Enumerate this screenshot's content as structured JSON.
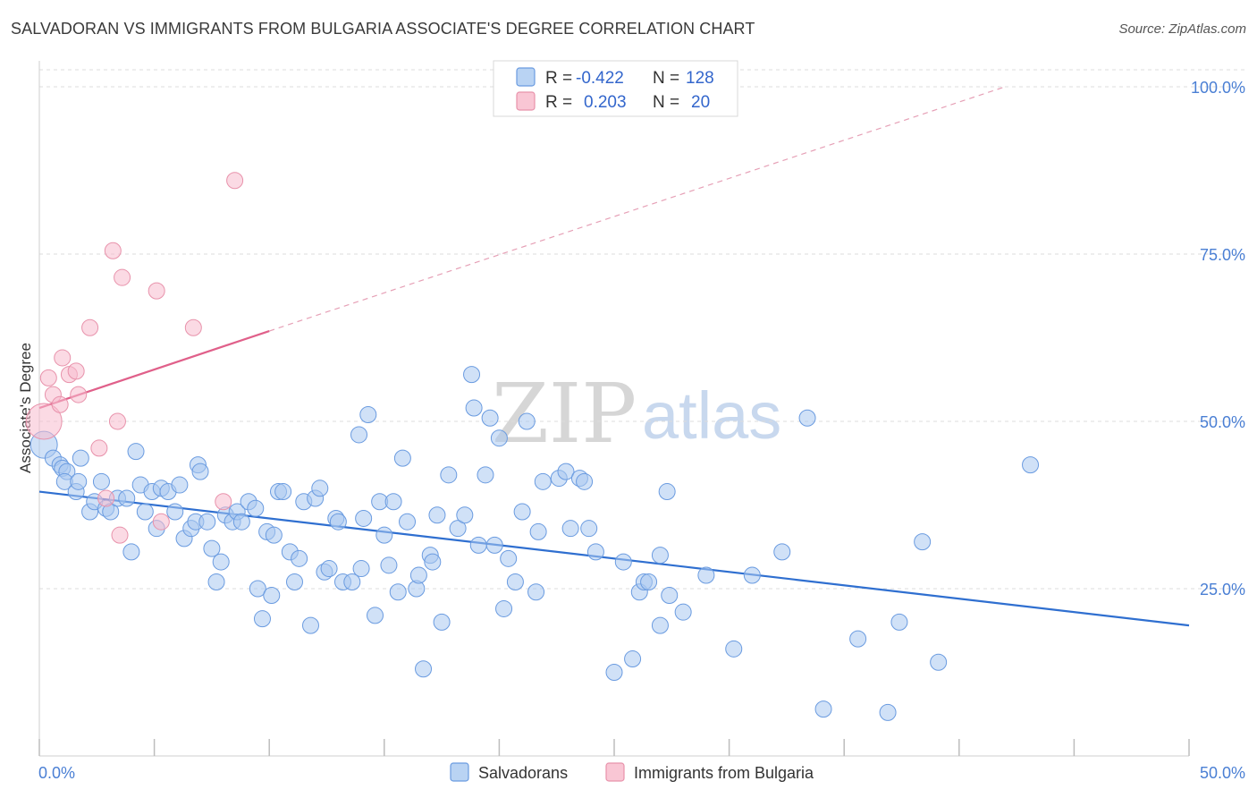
{
  "header": {
    "title": "SALVADORAN VS IMMIGRANTS FROM BULGARIA ASSOCIATE'S DEGREE CORRELATION CHART",
    "source": "Source: ZipAtlas.com"
  },
  "watermark": {
    "zip": "ZIP",
    "atlas": "atlas"
  },
  "legend": {
    "r_label": "R =",
    "n_label": "N =",
    "rows": [
      {
        "r": "-0.422",
        "n": "128",
        "swatch_fill": "#b9d3f3",
        "swatch_stroke": "#6a9be0"
      },
      {
        "r": "0.203",
        "n": "20",
        "swatch_fill": "#f9c6d4",
        "swatch_stroke": "#e892ab"
      }
    ]
  },
  "bottom_legend": [
    {
      "label": "Salvadorans",
      "swatch_fill": "#b9d3f3",
      "swatch_stroke": "#6a9be0"
    },
    {
      "label": "Immigrants from Bulgaria",
      "swatch_fill": "#f9c6d4",
      "swatch_stroke": "#e892ab"
    }
  ],
  "chart_data": {
    "type": "scatter",
    "title": "SALVADORAN VS IMMIGRANTS FROM BULGARIA ASSOCIATE'S DEGREE CORRELATION CHART",
    "xlabel": "",
    "ylabel": "Associate's Degree",
    "xlim": [
      0,
      50
    ],
    "ylim": [
      0,
      100
    ],
    "x_tick_labels": [
      {
        "value": 0,
        "label": "0.0%"
      },
      {
        "value": 50,
        "label": "50.0%"
      }
    ],
    "y_tick_labels": [
      {
        "value": 100,
        "label": "100.0%"
      },
      {
        "value": 75,
        "label": "75.0%"
      },
      {
        "value": 50,
        "label": "50.0%"
      },
      {
        "value": 25,
        "label": "25.0%"
      }
    ],
    "colors": {
      "salvadorans_fill": "#a9c8f0",
      "salvadorans_stroke": "#6a9be0",
      "bulgaria_fill": "#f7bccd",
      "bulgaria_stroke": "#e892ab",
      "blue_line": "#2f6fd0",
      "pink_line": "#e0608a",
      "grid": "#dcdcdc"
    },
    "series": [
      {
        "name": "Salvadorans",
        "r": -0.422,
        "n": 128,
        "trend": {
          "x0": 0,
          "y0": 39.5,
          "x1": 50,
          "y1": 19.5
        },
        "points": [
          [
            0.2,
            46.5
          ],
          [
            0.6,
            44.5
          ],
          [
            0.9,
            43.5
          ],
          [
            1.0,
            43
          ],
          [
            1.2,
            42.5
          ],
          [
            1.1,
            41
          ],
          [
            1.6,
            39.5
          ],
          [
            1.7,
            41
          ],
          [
            1.8,
            44.5
          ],
          [
            2.2,
            36.5
          ],
          [
            2.4,
            38
          ],
          [
            2.7,
            41
          ],
          [
            2.9,
            37
          ],
          [
            3.1,
            36.5
          ],
          [
            3.4,
            38.5
          ],
          [
            3.8,
            38.5
          ],
          [
            4.0,
            30.5
          ],
          [
            4.2,
            45.5
          ],
          [
            4.4,
            40.5
          ],
          [
            4.6,
            36.5
          ],
          [
            4.9,
            39.5
          ],
          [
            5.1,
            34
          ],
          [
            5.3,
            40
          ],
          [
            5.6,
            39.5
          ],
          [
            5.9,
            36.5
          ],
          [
            6.1,
            40.5
          ],
          [
            6.3,
            32.5
          ],
          [
            6.6,
            34
          ],
          [
            6.8,
            35
          ],
          [
            6.9,
            43.5
          ],
          [
            7.0,
            42.5
          ],
          [
            7.3,
            35
          ],
          [
            7.5,
            31
          ],
          [
            7.7,
            26
          ],
          [
            7.9,
            29
          ],
          [
            8.1,
            36
          ],
          [
            8.4,
            35
          ],
          [
            8.6,
            36.5
          ],
          [
            8.8,
            35
          ],
          [
            9.1,
            38
          ],
          [
            9.4,
            37
          ],
          [
            9.5,
            25
          ],
          [
            9.7,
            20.5
          ],
          [
            9.9,
            33.5
          ],
          [
            10.1,
            24
          ],
          [
            10.2,
            33
          ],
          [
            10.4,
            39.5
          ],
          [
            10.6,
            39.5
          ],
          [
            10.9,
            30.5
          ],
          [
            11.1,
            26
          ],
          [
            11.3,
            29.5
          ],
          [
            11.5,
            38
          ],
          [
            11.8,
            19.5
          ],
          [
            12.0,
            38.5
          ],
          [
            12.2,
            40
          ],
          [
            12.4,
            27.5
          ],
          [
            12.6,
            28
          ],
          [
            12.9,
            35.5
          ],
          [
            13.0,
            35
          ],
          [
            13.2,
            26
          ],
          [
            13.6,
            26
          ],
          [
            13.9,
            48
          ],
          [
            14.0,
            28
          ],
          [
            14.1,
            35.5
          ],
          [
            14.3,
            51
          ],
          [
            14.6,
            21
          ],
          [
            14.8,
            38
          ],
          [
            15.0,
            33
          ],
          [
            15.2,
            28.5
          ],
          [
            15.4,
            38
          ],
          [
            15.6,
            24.5
          ],
          [
            15.8,
            44.5
          ],
          [
            16.0,
            35
          ],
          [
            16.4,
            25
          ],
          [
            16.5,
            27
          ],
          [
            16.7,
            13
          ],
          [
            17.0,
            30
          ],
          [
            17.1,
            29
          ],
          [
            17.3,
            36
          ],
          [
            17.5,
            20
          ],
          [
            17.8,
            42
          ],
          [
            18.2,
            34
          ],
          [
            18.5,
            36
          ],
          [
            18.8,
            57
          ],
          [
            18.9,
            52
          ],
          [
            19.1,
            31.5
          ],
          [
            19.4,
            42
          ],
          [
            19.6,
            50.5
          ],
          [
            19.8,
            31.5
          ],
          [
            20.0,
            47.5
          ],
          [
            20.2,
            22
          ],
          [
            20.4,
            29.5
          ],
          [
            20.7,
            26
          ],
          [
            21.0,
            36.5
          ],
          [
            21.2,
            50
          ],
          [
            21.6,
            24.5
          ],
          [
            21.7,
            33.5
          ],
          [
            21.9,
            41
          ],
          [
            22.6,
            41.5
          ],
          [
            22.9,
            42.5
          ],
          [
            23.1,
            34
          ],
          [
            23.5,
            41.5
          ],
          [
            23.7,
            41
          ],
          [
            23.9,
            34
          ],
          [
            24.2,
            30.5
          ],
          [
            25.0,
            12.5
          ],
          [
            25.4,
            29
          ],
          [
            25.8,
            14.5
          ],
          [
            26.1,
            24.5
          ],
          [
            26.3,
            26
          ],
          [
            26.5,
            26
          ],
          [
            27.0,
            19.5
          ],
          [
            27.0,
            30
          ],
          [
            27.3,
            39.5
          ],
          [
            27.4,
            24
          ],
          [
            28.0,
            21.5
          ],
          [
            29.0,
            27
          ],
          [
            30.2,
            16
          ],
          [
            31.0,
            27
          ],
          [
            32.3,
            30.5
          ],
          [
            33.4,
            50.5
          ],
          [
            34.1,
            7
          ],
          [
            35.6,
            17.5
          ],
          [
            36.9,
            6.5
          ],
          [
            37.4,
            20
          ],
          [
            38.4,
            32
          ],
          [
            39.1,
            14
          ],
          [
            43.1,
            43.5
          ]
        ]
      },
      {
        "name": "Immigrants from Bulgaria",
        "r": 0.203,
        "n": 20,
        "trend": {
          "x0": 0,
          "y0": 52,
          "x1": 10,
          "y1": 63.5
        },
        "trend_ext": {
          "x0": 10,
          "y0": 63.5,
          "x1": 42,
          "y1": 100
        },
        "points": [
          [
            0.2,
            50
          ],
          [
            0.4,
            56.5
          ],
          [
            0.6,
            54
          ],
          [
            0.9,
            52.5
          ],
          [
            1.0,
            59.5
          ],
          [
            1.3,
            57
          ],
          [
            1.6,
            57.5
          ],
          [
            1.7,
            54
          ],
          [
            2.2,
            64
          ],
          [
            2.6,
            46
          ],
          [
            2.9,
            38.5
          ],
          [
            3.2,
            75.5
          ],
          [
            3.4,
            50
          ],
          [
            3.5,
            33
          ],
          [
            3.6,
            71.5
          ],
          [
            5.1,
            69.5
          ],
          [
            5.3,
            35
          ],
          [
            6.7,
            64
          ],
          [
            8.0,
            38
          ],
          [
            8.5,
            86
          ]
        ]
      }
    ]
  }
}
